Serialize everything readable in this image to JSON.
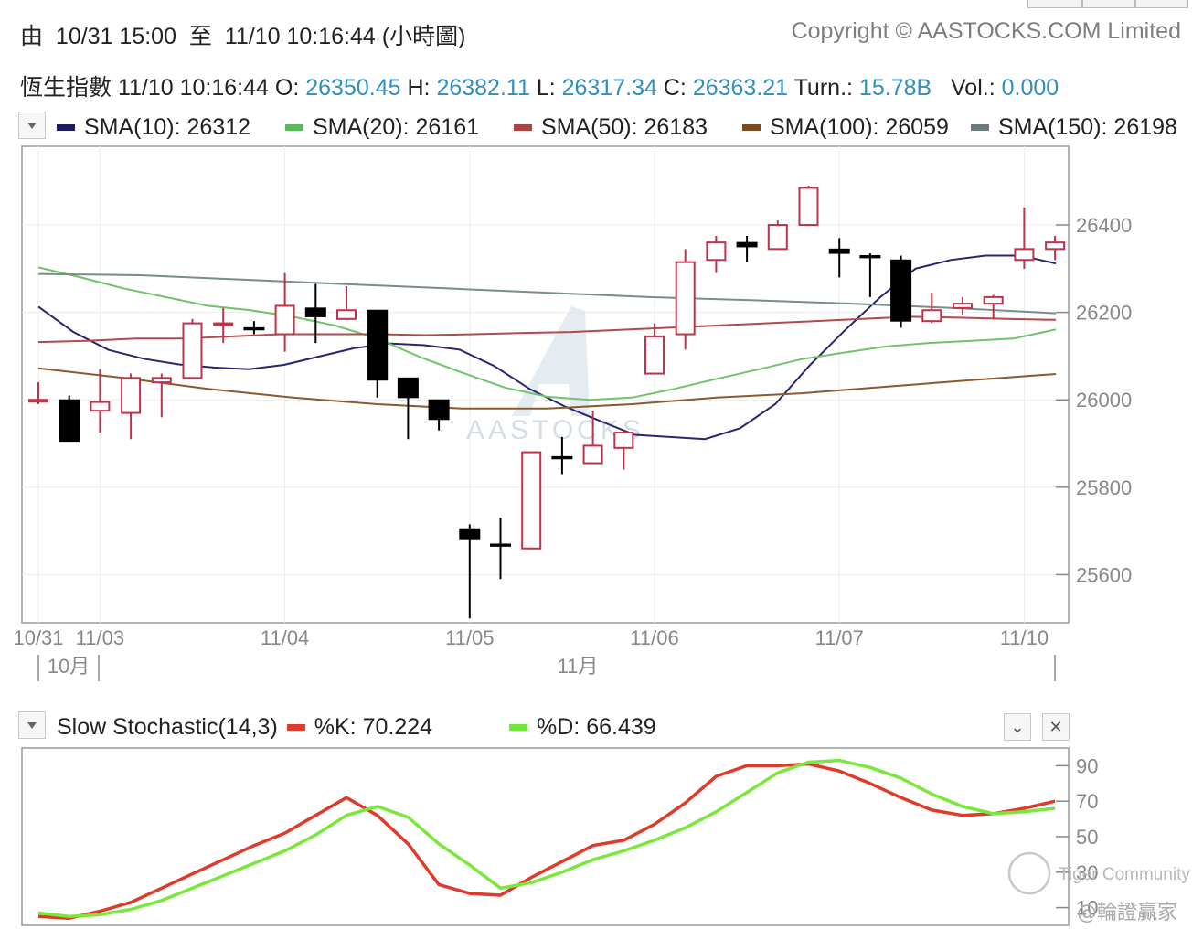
{
  "header": {
    "range_from_label": "由",
    "range_from": "10/31 15:00",
    "range_to_label": "至",
    "range_to": "11/10 10:16:44",
    "chart_kind": "(小時圖)",
    "copyright": "Copyright © AASTOCKS.COM Limited"
  },
  "quote": {
    "name": "恆生指數",
    "time": "11/10 10:16:44",
    "open_label": "O:",
    "open": "26350.45",
    "high_label": "H:",
    "high": "26382.11",
    "low_label": "L:",
    "low": "26317.34",
    "close_label": "C:",
    "close": "26363.21",
    "turnover_label": "Turn.:",
    "turnover": "15.78B",
    "volume_label": "Vol.:",
    "volume": "0.000"
  },
  "sma_legend": [
    {
      "label": "SMA(10): 26312",
      "color": "#1f1b5e"
    },
    {
      "label": "SMA(20): 26161",
      "color": "#5cb85c"
    },
    {
      "label": "SMA(50): 26183",
      "color": "#a94442"
    },
    {
      "label": "SMA(100): 26059",
      "color": "#7a4a1c"
    },
    {
      "label": "SMA(150): 26198",
      "color": "#6b7b7b"
    }
  ],
  "stoch_legend": {
    "title": "Slow Stochastic(14,3)",
    "k_label": "%K: 70.224",
    "d_label": "%D: 66.439",
    "k_color": "#e03a2a",
    "d_color": "#6ee83a"
  },
  "watermark": {
    "center": "AASTOCKS",
    "tiger": "Tiger Community",
    "author": "@輪證贏家"
  },
  "icons": {
    "dropdown": "chevron-down-icon",
    "collapse": "chevron-down-icon",
    "close": "close-icon"
  },
  "chart_data": [
    {
      "type": "candlestick",
      "colors": {
        "up": "#c0324a",
        "down": "#000000"
      },
      "y_ticks": [
        25600,
        25800,
        26000,
        26200,
        26400
      ],
      "ylim": [
        25490,
        26580
      ],
      "x_tick_labels": [
        "10/31",
        "11/03",
        "11/04",
        "11/05",
        "11/06",
        "11/07",
        "11/10"
      ],
      "x_tick_index": [
        0,
        2,
        8,
        14,
        20,
        26,
        32
      ],
      "month_labels": [
        "10月",
        "11月"
      ],
      "candles": [
        {
          "o": 26000,
          "h": 26040,
          "l": 25990,
          "c": 26000
        },
        {
          "o": 26000,
          "h": 26010,
          "l": 25905,
          "c": 25905
        },
        {
          "o": 25975,
          "h": 26070,
          "l": 25925,
          "c": 25995
        },
        {
          "o": 25970,
          "h": 26060,
          "l": 25910,
          "c": 26050
        },
        {
          "o": 26040,
          "h": 26060,
          "l": 25960,
          "c": 26050
        },
        {
          "o": 26050,
          "h": 26185,
          "l": 26050,
          "c": 26175
        },
        {
          "o": 26175,
          "h": 26210,
          "l": 26130,
          "c": 26175
        },
        {
          "o": 26165,
          "h": 26180,
          "l": 26150,
          "c": 26160
        },
        {
          "o": 26150,
          "h": 26290,
          "l": 26110,
          "c": 26215
        },
        {
          "o": 26210,
          "h": 26265,
          "l": 26130,
          "c": 26190
        },
        {
          "o": 26185,
          "h": 26260,
          "l": 26185,
          "c": 26205
        },
        {
          "o": 26205,
          "h": 26205,
          "l": 26005,
          "c": 26045
        },
        {
          "o": 26050,
          "h": 26050,
          "l": 25910,
          "c": 26005
        },
        {
          "o": 26000,
          "h": 26000,
          "l": 25930,
          "c": 25955
        },
        {
          "o": 25705,
          "h": 25715,
          "l": 25500,
          "c": 25680
        },
        {
          "o": 25670,
          "h": 25730,
          "l": 25590,
          "c": 25665
        },
        {
          "o": 25660,
          "h": 25880,
          "l": 25660,
          "c": 25880
        },
        {
          "o": 25870,
          "h": 25915,
          "l": 25830,
          "c": 25865
        },
        {
          "o": 25855,
          "h": 25975,
          "l": 25855,
          "c": 25895
        },
        {
          "o": 25890,
          "h": 25930,
          "l": 25840,
          "c": 25925
        },
        {
          "o": 26060,
          "h": 26175,
          "l": 26060,
          "c": 26145
        },
        {
          "o": 26150,
          "h": 26345,
          "l": 26115,
          "c": 26315
        },
        {
          "o": 26320,
          "h": 26375,
          "l": 26290,
          "c": 26360
        },
        {
          "o": 26360,
          "h": 26375,
          "l": 26315,
          "c": 26350
        },
        {
          "o": 26345,
          "h": 26410,
          "l": 26345,
          "c": 26400
        },
        {
          "o": 26400,
          "h": 26490,
          "l": 26400,
          "c": 26485
        },
        {
          "o": 26345,
          "h": 26370,
          "l": 26280,
          "c": 26335
        },
        {
          "o": 26330,
          "h": 26335,
          "l": 26235,
          "c": 26325
        },
        {
          "o": 26320,
          "h": 26330,
          "l": 26165,
          "c": 26180
        },
        {
          "o": 26180,
          "h": 26245,
          "l": 26175,
          "c": 26205
        },
        {
          "o": 26210,
          "h": 26235,
          "l": 26195,
          "c": 26220
        },
        {
          "o": 26220,
          "h": 26240,
          "l": 26185,
          "c": 26235
        },
        {
          "o": 26320,
          "h": 26440,
          "l": 26300,
          "c": 26345
        },
        {
          "o": 26345,
          "h": 26375,
          "l": 26320,
          "c": 26360
        }
      ],
      "series": [
        {
          "name": "SMA(10)",
          "color": "#2a2570",
          "values": [
            26213,
            26155,
            26114,
            26094,
            26081,
            26074,
            26070,
            26080,
            26099,
            26118,
            26129,
            26125,
            26115,
            26077,
            26025,
            25985,
            25952,
            25920,
            25915,
            25910,
            25935,
            25990,
            26080,
            26160,
            26235,
            26300,
            26320,
            26330,
            26330,
            26312
          ]
        },
        {
          "name": "SMA(20)",
          "color": "#6fc46a",
          "values": [
            26303,
            26280,
            26255,
            26235,
            26215,
            26205,
            26190,
            26170,
            26140,
            26098,
            26062,
            26028,
            26007,
            26000,
            26005,
            26025,
            26048,
            26070,
            26093,
            26108,
            26122,
            26130,
            26135,
            26140,
            26161
          ]
        },
        {
          "name": "SMA(50)",
          "color": "#b34a4c",
          "values": [
            26132,
            26135,
            26140,
            26140,
            26145,
            26150,
            26150,
            26150,
            26148,
            26150,
            26153,
            26155,
            26160,
            26165,
            26170,
            26175,
            26180,
            26185,
            26190,
            26188,
            26185,
            26183
          ]
        },
        {
          "name": "SMA(100)",
          "color": "#8a5a30",
          "values": [
            26072,
            26050,
            26025,
            26005,
            25990,
            25980,
            25980,
            25990,
            26005,
            26015,
            26030,
            26045,
            26059
          ]
        },
        {
          "name": "SMA(150)",
          "color": "#7b8c8c",
          "values": [
            26288,
            26285,
            26275,
            26265,
            26255,
            26245,
            26235,
            26228,
            26220,
            26210,
            26198
          ]
        }
      ]
    },
    {
      "type": "line",
      "title": "Slow Stochastic(14,3)",
      "ylim": [
        0,
        100
      ],
      "y_ticks": [
        10,
        30,
        50,
        70,
        90
      ],
      "series": [
        {
          "name": "%K",
          "color": "#e03a2a",
          "values": [
            5,
            4,
            8,
            13,
            21,
            29,
            37,
            45,
            52,
            62,
            72,
            62,
            46,
            23,
            18,
            17,
            27,
            36,
            45,
            48,
            57,
            69,
            84,
            90,
            90,
            91,
            87,
            80,
            72,
            65,
            62,
            63,
            66,
            70
          ]
        },
        {
          "name": "%D",
          "color": "#7ae83a",
          "values": [
            7,
            5,
            6,
            9,
            14,
            21,
            28,
            35,
            42,
            51,
            62,
            67,
            61,
            46,
            34,
            21,
            24,
            30,
            37,
            42,
            48,
            55,
            64,
            75,
            86,
            92,
            93,
            89,
            83,
            74,
            67,
            63,
            64,
            66
          ]
        }
      ]
    }
  ]
}
